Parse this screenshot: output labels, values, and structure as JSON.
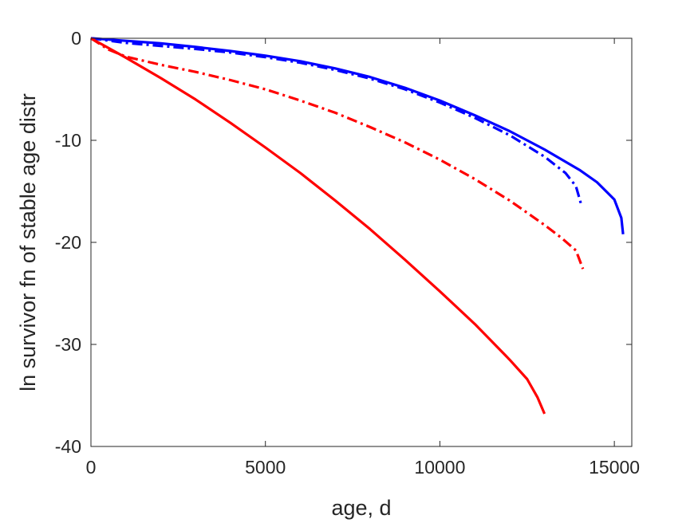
{
  "chart_data": {
    "type": "line",
    "title": "",
    "xlabel": "age, d",
    "ylabel": "ln survivor fn of stable age distr",
    "xlim": [
      0,
      15500
    ],
    "ylim": [
      -40,
      0
    ],
    "xticks": [
      0,
      5000,
      10000,
      15000
    ],
    "yticks": [
      0,
      -10,
      -20,
      -30,
      -40
    ],
    "xtick_labels": [
      "0",
      "5000",
      "10000",
      "15000"
    ],
    "ytick_labels": [
      "0",
      "-10",
      "-20",
      "-30",
      "-40"
    ],
    "grid": false,
    "legend": "none",
    "series": [
      {
        "color": "#0000ff",
        "dash": "solid",
        "x": [
          0,
          1000,
          2000,
          3000,
          4000,
          5000,
          6000,
          7000,
          8000,
          9000,
          10000,
          11000,
          12000,
          13000,
          14000,
          14500,
          15000,
          15200,
          15250
        ],
        "y": [
          0,
          -0.25,
          -0.5,
          -0.85,
          -1.25,
          -1.7,
          -2.25,
          -2.95,
          -3.8,
          -4.85,
          -6.1,
          -7.55,
          -9.1,
          -10.9,
          -12.9,
          -14.1,
          -15.8,
          -17.6,
          -19.2
        ]
      },
      {
        "color": "#0000ff",
        "dash": "dashdot",
        "x": [
          0,
          1000,
          2000,
          3000,
          4000,
          5000,
          6000,
          7000,
          8000,
          9000,
          10000,
          11000,
          12000,
          13000,
          13600,
          13900,
          14050
        ],
        "y": [
          0,
          -0.45,
          -0.75,
          -1.05,
          -1.4,
          -1.85,
          -2.4,
          -3.1,
          -3.95,
          -5.0,
          -6.3,
          -7.8,
          -9.5,
          -11.6,
          -13.2,
          -14.5,
          -16.3
        ]
      },
      {
        "color": "#ff0000",
        "dash": "dashdot",
        "x": [
          0,
          500,
          1000,
          2000,
          3000,
          4000,
          5000,
          6000,
          7000,
          8000,
          9000,
          10000,
          11000,
          12000,
          13000,
          13500,
          13900,
          14100
        ],
        "y": [
          0,
          -1.1,
          -1.8,
          -2.6,
          -3.3,
          -4.1,
          -5.0,
          -6.1,
          -7.3,
          -8.7,
          -10.2,
          -11.9,
          -13.8,
          -15.9,
          -18.3,
          -19.6,
          -20.8,
          -22.6
        ]
      },
      {
        "color": "#ff0000",
        "dash": "solid",
        "x": [
          0,
          1000,
          2000,
          3000,
          4000,
          5000,
          6000,
          7000,
          8000,
          9000,
          10000,
          11000,
          12000,
          12500,
          12800,
          13000
        ],
        "y": [
          0,
          -1.9,
          -3.9,
          -6.0,
          -8.3,
          -10.7,
          -13.2,
          -15.9,
          -18.7,
          -21.7,
          -24.8,
          -28.0,
          -31.5,
          -33.4,
          -35.2,
          -36.8
        ]
      }
    ]
  }
}
